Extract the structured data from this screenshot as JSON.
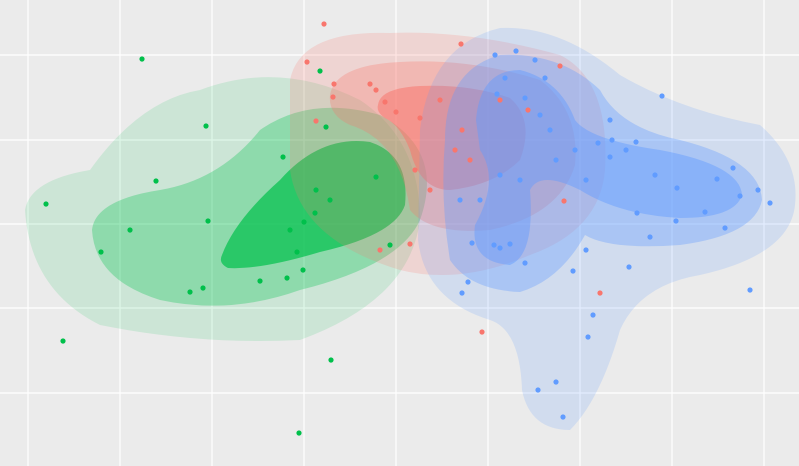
{
  "chart_data": {
    "type": "scatter",
    "xlim": [
      0,
      799
    ],
    "ylim": [
      0,
      466
    ],
    "xticks": [
      28,
      120,
      212,
      304,
      396,
      488,
      580,
      672,
      764
    ],
    "yticks": [
      73,
      158,
      242,
      326,
      411
    ],
    "grid": true,
    "series": [
      {
        "color": "#00c04b",
        "x": [
          142,
          206,
          156,
          46,
          130,
          101,
          208,
          63,
          190,
          203,
          260,
          299,
          331,
          283,
          316,
          326,
          320,
          304,
          290,
          315,
          330,
          376,
          390,
          303,
          287,
          297
        ],
        "values": [
          407,
          340,
          285,
          262,
          236,
          214,
          245,
          125,
          174,
          178,
          185,
          33,
          106,
          309,
          276,
          339,
          395,
          244,
          236,
          253,
          266,
          289,
          221,
          196,
          188,
          214
        ]
      },
      {
        "color": "#f8766d",
        "x": [
          324,
          461,
          307,
          334,
          370,
          376,
          385,
          396,
          420,
          440,
          462,
          455,
          470,
          415,
          430,
          410,
          380,
          482,
          600,
          564,
          560,
          316,
          333,
          500,
          528
        ],
        "values": [
          442,
          422,
          404,
          382,
          382,
          376,
          364,
          354,
          348,
          366,
          336,
          316,
          306,
          296,
          276,
          222,
          216,
          134,
          173,
          265,
          400,
          345,
          369,
          366,
          356
        ]
      },
      {
        "color": "#619cff",
        "x": [
          495,
          516,
          535,
          545,
          505,
          525,
          540,
          550,
          556,
          575,
          598,
          612,
          626,
          636,
          662,
          610,
          586,
          655,
          677,
          717,
          733,
          740,
          758,
          770,
          705,
          725,
          676,
          637,
          650,
          629,
          573,
          586,
          520,
          500,
          480,
          472,
          494,
          500,
          510,
          525,
          468,
          462,
          593,
          588,
          556,
          538,
          563,
          750,
          610,
          497,
          460
        ],
        "values": [
          411,
          415,
          406,
          388,
          388,
          368,
          351,
          336,
          306,
          316,
          323,
          326,
          316,
          324,
          370,
          309,
          286,
          291,
          278,
          287,
          298,
          270,
          276,
          263,
          254,
          238,
          245,
          253,
          229,
          199,
          195,
          216,
          286,
          291,
          266,
          223,
          221,
          218,
          222,
          203,
          184,
          173,
          151,
          129,
          84,
          76,
          49,
          176,
          346,
          372,
          266
        ]
      }
    ]
  }
}
